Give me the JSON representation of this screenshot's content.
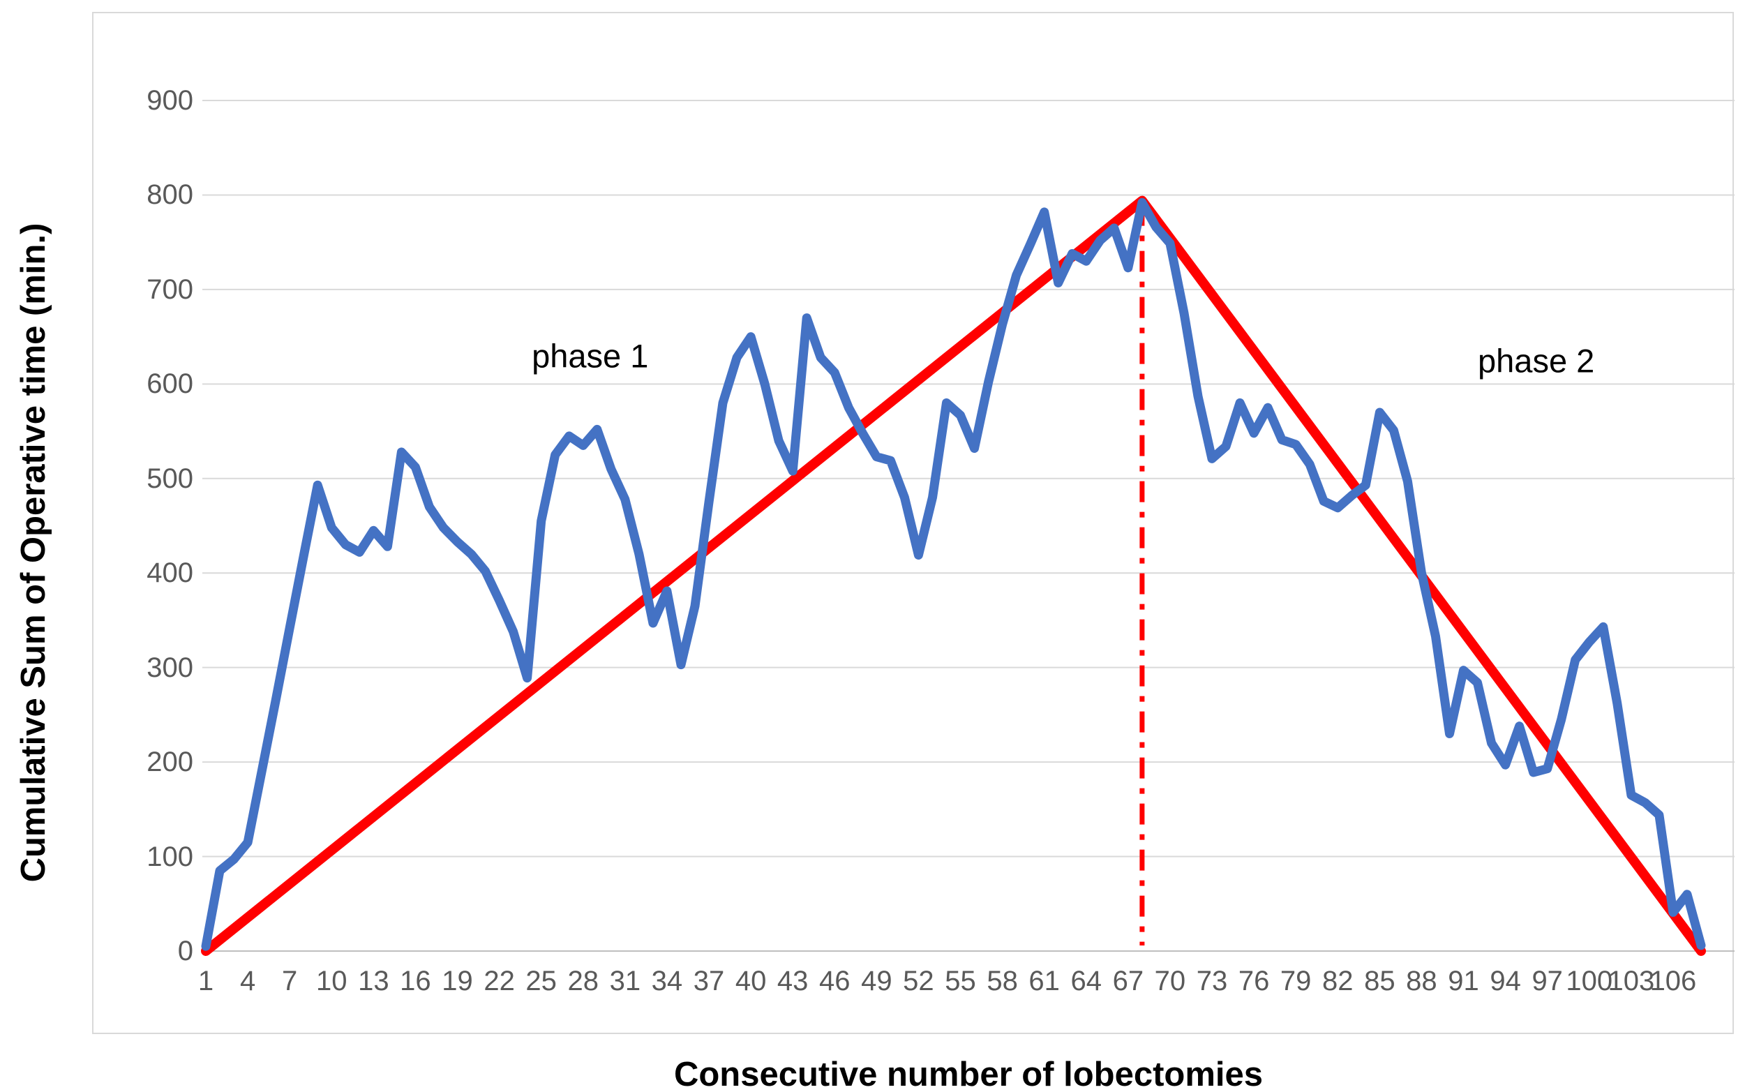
{
  "chart_data": {
    "type": "line",
    "title": "",
    "xlabel": "Consecutive number of lobectomies",
    "ylabel": "Cumulative Sum of Operative time (min.)",
    "x_definition": "consecutive lobectomy case number, 1..108 (one value per case)",
    "ylim": [
      0,
      900
    ],
    "y_ticks": [
      0,
      100,
      200,
      300,
      400,
      500,
      600,
      700,
      800,
      900
    ],
    "x_ticks": [
      1,
      4,
      7,
      10,
      13,
      16,
      19,
      22,
      25,
      28,
      31,
      34,
      37,
      40,
      43,
      46,
      49,
      52,
      55,
      58,
      61,
      64,
      67,
      70,
      73,
      76,
      79,
      82,
      85,
      88,
      91,
      94,
      97,
      100,
      103,
      106
    ],
    "grid": true,
    "legend_position": "none",
    "series": [
      {
        "name": "cumulative sum of operative time",
        "color": "#4472C4",
        "values": [
          5,
          85,
          97,
          115,
          190,
          265,
          342,
          418,
          493,
          448,
          430,
          422,
          445,
          428,
          528,
          512,
          470,
          448,
          433,
          420,
          402,
          371,
          338,
          289,
          455,
          525,
          545,
          535,
          552,
          510,
          478,
          420,
          347,
          381,
          303,
          365,
          475,
          580,
          628,
          650,
          600,
          540,
          508,
          670,
          628,
          612,
          575,
          548,
          523,
          519,
          480,
          419,
          480,
          580,
          567,
          532,
          602,
          663,
          715,
          748,
          782,
          707,
          738,
          730,
          752,
          765,
          723,
          792,
          766,
          749,
          675,
          587,
          521,
          534,
          580,
          548,
          575,
          541,
          536,
          515,
          476,
          469,
          482,
          493,
          570,
          551,
          497,
          400,
          333,
          230,
          297,
          284,
          220,
          197,
          238,
          189,
          193,
          245,
          308,
          327,
          343,
          262,
          165,
          157,
          144,
          41,
          60,
          6
        ]
      },
      {
        "name": "phase reference line",
        "color": "#FF0000",
        "points": [
          [
            1,
            0
          ],
          [
            68,
            794
          ],
          [
            108,
            0
          ]
        ]
      }
    ],
    "vline": {
      "x": 68,
      "y_from": 0,
      "y_to": 794,
      "color": "#FF0000",
      "style": "dash-dot"
    },
    "annotations": [
      {
        "id": "phase1",
        "text": "phase 1",
        "x_case": 28.5,
        "y_value": 630
      },
      {
        "id": "phase2",
        "text": "phase 2",
        "x_case": 96.2,
        "y_value": 625
      }
    ]
  },
  "colors": {
    "series_blue": "#4472C4",
    "reference_red": "#FF0000",
    "gridline": "#d9d9d9",
    "axis_line": "#bfbfbf",
    "tick_text": "#595959",
    "title_text": "#000000",
    "frame_border": "#d9d9d9",
    "background": "#ffffff"
  },
  "labels": {
    "phase1": "phase 1",
    "phase2": "phase 2",
    "x_title": "Consecutive number of lobectomies",
    "y_title": "Cumulative Sum of Operative time (min.)"
  }
}
